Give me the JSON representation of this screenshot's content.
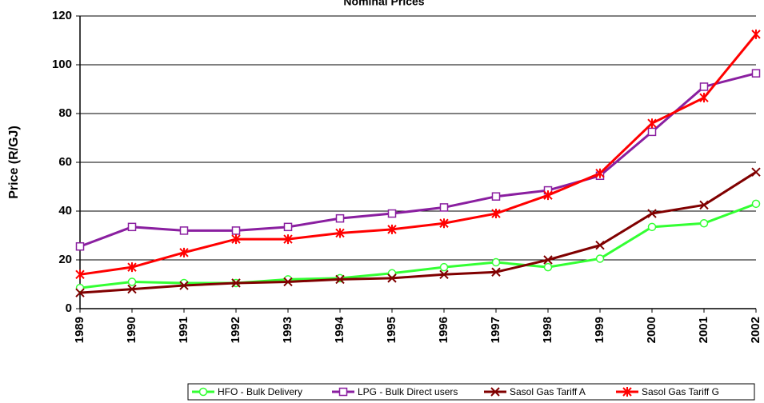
{
  "chart_data": {
    "type": "line",
    "title": "Nominal Prices",
    "y_label": "Price (R/GJ)",
    "categories": [
      "1989",
      "1990",
      "1991",
      "1992",
      "1993",
      "1994",
      "1995",
      "1996",
      "1997",
      "1998",
      "1999",
      "2000",
      "2001",
      "2002"
    ],
    "series": [
      {
        "name": "HFO - Bulk Delivery",
        "color": "#33ff33",
        "marker": "circle",
        "values": [
          8.5,
          11,
          10.5,
          10.5,
          12,
          12.5,
          14.5,
          17,
          19,
          17,
          20.5,
          33.5,
          35,
          43
        ]
      },
      {
        "name": "LPG - Bulk Direct users",
        "color": "#8a1fa0",
        "marker": "square",
        "values": [
          25.5,
          33.5,
          32,
          32,
          33.5,
          37,
          39,
          41.5,
          46,
          48.5,
          54.5,
          72.5,
          91,
          96.5
        ]
      },
      {
        "name": "Sasol Gas Tariff A",
        "color": "#800000",
        "marker": "x",
        "values": [
          6.5,
          8,
          9.5,
          10.5,
          11,
          12,
          12.5,
          14,
          15,
          20,
          26,
          39,
          42.5,
          56
        ]
      },
      {
        "name": "Sasol Gas Tariff G",
        "color": "#ff0000",
        "marker": "star",
        "values": [
          14,
          17,
          23,
          28.5,
          28.5,
          31,
          32.5,
          35,
          39,
          46.5,
          55.5,
          76,
          86.5,
          112.5
        ]
      }
    ],
    "ylim": [
      0,
      120
    ],
    "yticks": [
      0,
      20,
      40,
      60,
      80,
      100,
      120
    ],
    "grid": true,
    "legend": "bottom"
  }
}
